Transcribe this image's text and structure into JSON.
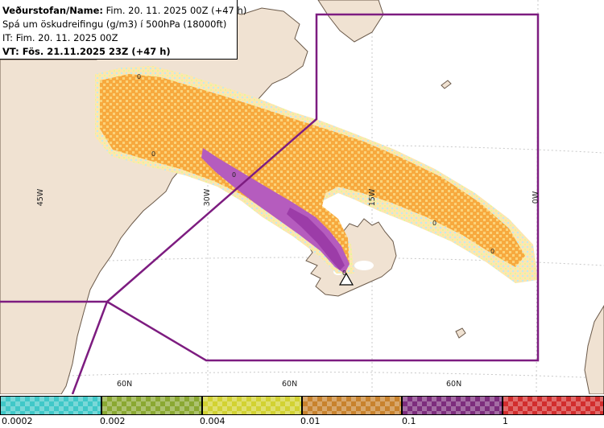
{
  "header": {
    "line1_label": "Veðurstofan/Name:",
    "line1_value": "Fim. 20. 11. 2025 00Z (+47 h)",
    "line2": "Spá um öskudreifingu (g/m3) í 500hPa (18000ft)",
    "line3_label": "IT:",
    "line3_value": "Fim. 20. 11. 2025 00Z",
    "line4_label": "VT:",
    "line4_value": "Fös. 21.11.2025 23Z (+47 h)"
  },
  "map": {
    "longitude_labels": [
      "45W",
      "30W",
      "15W",
      "0W"
    ],
    "latitude_labels": [
      "60N",
      "60N",
      "60N"
    ],
    "contour_labels": [
      "0",
      "0",
      "0",
      "0",
      "0",
      "0"
    ],
    "volcano_marker": "volcano-triangle-icon",
    "colors": {
      "sea": "#ffffff",
      "land": "#f0e2d2",
      "coast": "#6b5a4a",
      "grid": "#c8c8c8",
      "boundary": "#7d1c80",
      "ash_light": "#fbd37a",
      "ash_mid": "#f7a93e",
      "ash_high": "#b55cbe",
      "ash_fringe": "#bfeaf0"
    }
  },
  "legend": {
    "labels": [
      "0.0002",
      "0.002",
      "0.004",
      "0.01",
      "0.1",
      "1"
    ],
    "colors": [
      "#40c8c8",
      "#8aa832",
      "#d2d232",
      "#c8822d",
      "#7d2d7d",
      "#d22d2d"
    ]
  }
}
